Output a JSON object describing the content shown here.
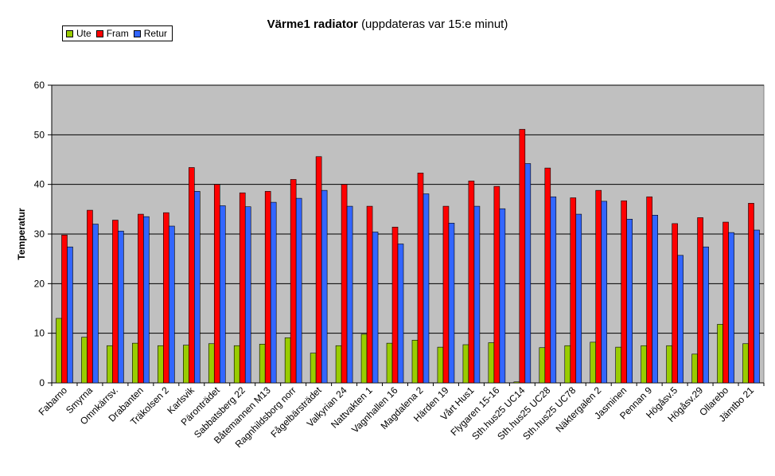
{
  "chart_data": {
    "type": "bar",
    "title": "Värme1 radiator",
    "subtitle": "(uppdateras var 15:e minut)",
    "xlabel": "",
    "ylabel": "Temperatur",
    "ylim": [
      0,
      60
    ],
    "yticks": [
      0,
      10,
      20,
      30,
      40,
      50,
      60
    ],
    "grid": true,
    "legend_position": "top-left",
    "plot_background": "#c0c0c0",
    "categories": [
      "Fabarno",
      "Smyrna",
      "Omnkärrsv.",
      "Drabanten",
      "Träkolsen 2",
      "Karlsvik",
      "Päronträdet",
      "Sabbatsberg 22",
      "Båtemannen M13",
      "Ragnhildsborg norr",
      "Fågelbärsträdet",
      "Valkyrian 24",
      "Nattvakten 1",
      "Vagnhallen 16",
      "Magdalena 2",
      "Härden 19",
      "Vårt Hus1",
      "Flygaren 15-16",
      "Sth.hus25 UC14",
      "Sth.hus25 UC28",
      "Sth.hus25 UC78",
      "Näktergalen 2",
      "Jasminen",
      "Pennan 9",
      "Högåsv.5",
      "Högåsv.29",
      "Ollarebo",
      "Jämtbo 21"
    ],
    "series": [
      {
        "name": "Ute",
        "color": "#99cc00",
        "values": [
          13.0,
          9.2,
          7.5,
          8.0,
          7.5,
          7.6,
          7.9,
          7.5,
          7.8,
          9.1,
          6.0,
          7.5,
          9.8,
          8.0,
          8.6,
          7.2,
          7.7,
          8.1,
          0.2,
          7.1,
          7.5,
          8.2,
          7.2,
          7.5,
          7.5,
          5.8,
          11.8,
          7.9
        ]
      },
      {
        "name": "Fram",
        "color": "#ff0000",
        "values": [
          29.8,
          34.8,
          32.8,
          34.0,
          34.3,
          43.4,
          40.0,
          38.3,
          38.6,
          41.0,
          45.6,
          40.0,
          35.6,
          31.4,
          42.3,
          35.6,
          40.7,
          39.6,
          51.1,
          43.3,
          37.3,
          38.8,
          36.7,
          37.5,
          32.1,
          33.3,
          32.4,
          36.2
        ]
      },
      {
        "name": "Retur",
        "color": "#3366ff",
        "values": [
          27.4,
          32.0,
          30.6,
          33.5,
          31.6,
          38.6,
          35.7,
          35.5,
          36.4,
          37.2,
          38.8,
          35.6,
          30.4,
          28.0,
          38.1,
          32.2,
          35.6,
          35.1,
          44.2,
          37.5,
          34.0,
          36.6,
          33.0,
          33.8,
          25.7,
          27.4,
          30.3,
          30.8
        ]
      }
    ]
  }
}
